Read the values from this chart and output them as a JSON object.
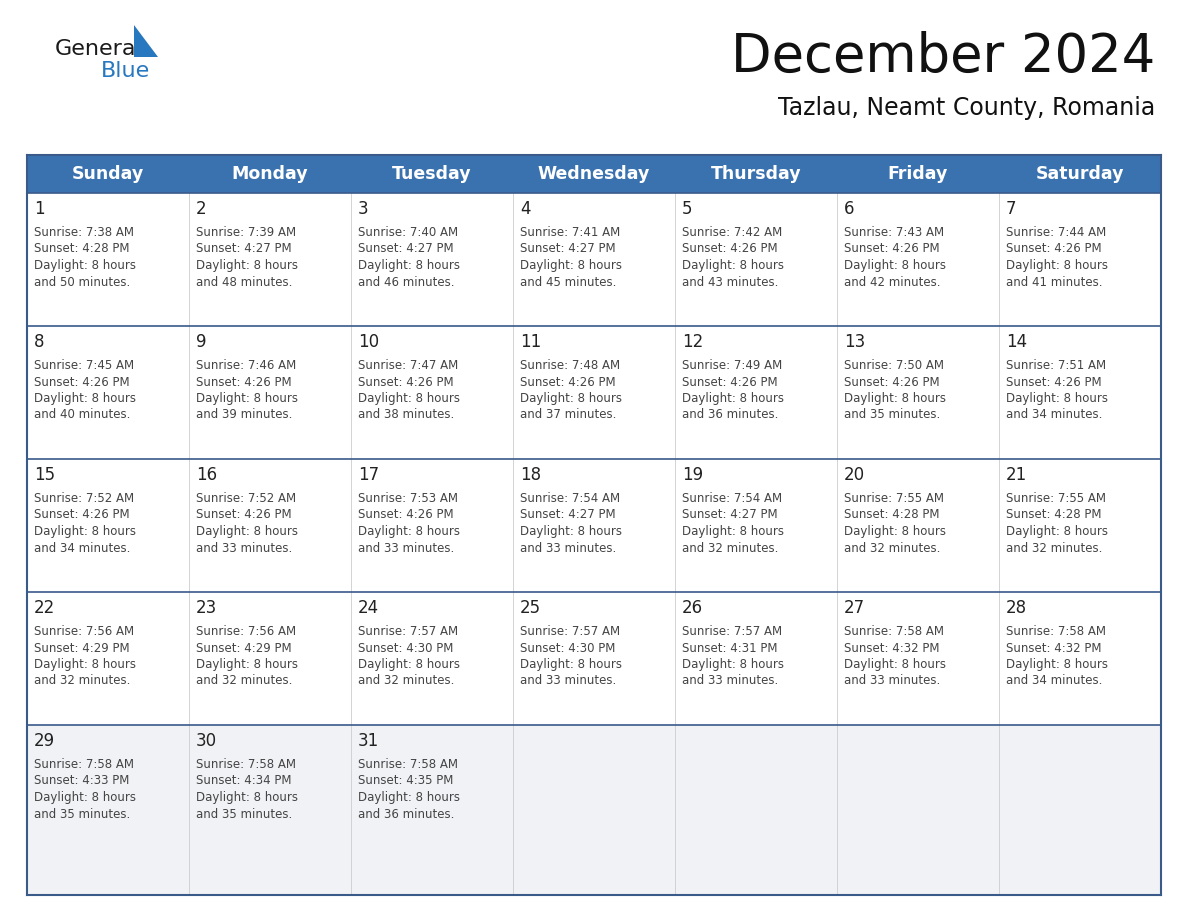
{
  "title": "December 2024",
  "subtitle": "Tazlau, Neamt County, Romania",
  "days_of_week": [
    "Sunday",
    "Monday",
    "Tuesday",
    "Wednesday",
    "Thursday",
    "Friday",
    "Saturday"
  ],
  "header_bg": "#3a72b0",
  "header_text": "#ffffff",
  "cell_bg": "#ffffff",
  "last_row_bg": "#f0f2f5",
  "row_divider_color": "#3a5a8a",
  "col_divider_color": "#cccccc",
  "outer_border_color": "#3a5a8a",
  "text_color": "#444444",
  "day_num_color": "#222222",
  "calendar_data": [
    [
      {
        "day": 1,
        "sunrise": "7:38 AM",
        "sunset": "4:28 PM",
        "daylight": "50 minutes."
      },
      {
        "day": 2,
        "sunrise": "7:39 AM",
        "sunset": "4:27 PM",
        "daylight": "48 minutes."
      },
      {
        "day": 3,
        "sunrise": "7:40 AM",
        "sunset": "4:27 PM",
        "daylight": "46 minutes."
      },
      {
        "day": 4,
        "sunrise": "7:41 AM",
        "sunset": "4:27 PM",
        "daylight": "45 minutes."
      },
      {
        "day": 5,
        "sunrise": "7:42 AM",
        "sunset": "4:26 PM",
        "daylight": "43 minutes."
      },
      {
        "day": 6,
        "sunrise": "7:43 AM",
        "sunset": "4:26 PM",
        "daylight": "42 minutes."
      },
      {
        "day": 7,
        "sunrise": "7:44 AM",
        "sunset": "4:26 PM",
        "daylight": "41 minutes."
      }
    ],
    [
      {
        "day": 8,
        "sunrise": "7:45 AM",
        "sunset": "4:26 PM",
        "daylight": "40 minutes."
      },
      {
        "day": 9,
        "sunrise": "7:46 AM",
        "sunset": "4:26 PM",
        "daylight": "39 minutes."
      },
      {
        "day": 10,
        "sunrise": "7:47 AM",
        "sunset": "4:26 PM",
        "daylight": "38 minutes."
      },
      {
        "day": 11,
        "sunrise": "7:48 AM",
        "sunset": "4:26 PM",
        "daylight": "37 minutes."
      },
      {
        "day": 12,
        "sunrise": "7:49 AM",
        "sunset": "4:26 PM",
        "daylight": "36 minutes."
      },
      {
        "day": 13,
        "sunrise": "7:50 AM",
        "sunset": "4:26 PM",
        "daylight": "35 minutes."
      },
      {
        "day": 14,
        "sunrise": "7:51 AM",
        "sunset": "4:26 PM",
        "daylight": "34 minutes."
      }
    ],
    [
      {
        "day": 15,
        "sunrise": "7:52 AM",
        "sunset": "4:26 PM",
        "daylight": "34 minutes."
      },
      {
        "day": 16,
        "sunrise": "7:52 AM",
        "sunset": "4:26 PM",
        "daylight": "33 minutes."
      },
      {
        "day": 17,
        "sunrise": "7:53 AM",
        "sunset": "4:26 PM",
        "daylight": "33 minutes."
      },
      {
        "day": 18,
        "sunrise": "7:54 AM",
        "sunset": "4:27 PM",
        "daylight": "33 minutes."
      },
      {
        "day": 19,
        "sunrise": "7:54 AM",
        "sunset": "4:27 PM",
        "daylight": "32 minutes."
      },
      {
        "day": 20,
        "sunrise": "7:55 AM",
        "sunset": "4:28 PM",
        "daylight": "32 minutes."
      },
      {
        "day": 21,
        "sunrise": "7:55 AM",
        "sunset": "4:28 PM",
        "daylight": "32 minutes."
      }
    ],
    [
      {
        "day": 22,
        "sunrise": "7:56 AM",
        "sunset": "4:29 PM",
        "daylight": "32 minutes."
      },
      {
        "day": 23,
        "sunrise": "7:56 AM",
        "sunset": "4:29 PM",
        "daylight": "32 minutes."
      },
      {
        "day": 24,
        "sunrise": "7:57 AM",
        "sunset": "4:30 PM",
        "daylight": "32 minutes."
      },
      {
        "day": 25,
        "sunrise": "7:57 AM",
        "sunset": "4:30 PM",
        "daylight": "33 minutes."
      },
      {
        "day": 26,
        "sunrise": "7:57 AM",
        "sunset": "4:31 PM",
        "daylight": "33 minutes."
      },
      {
        "day": 27,
        "sunrise": "7:58 AM",
        "sunset": "4:32 PM",
        "daylight": "33 minutes."
      },
      {
        "day": 28,
        "sunrise": "7:58 AM",
        "sunset": "4:32 PM",
        "daylight": "34 minutes."
      }
    ],
    [
      {
        "day": 29,
        "sunrise": "7:58 AM",
        "sunset": "4:33 PM",
        "daylight": "35 minutes."
      },
      {
        "day": 30,
        "sunrise": "7:58 AM",
        "sunset": "4:34 PM",
        "daylight": "35 minutes."
      },
      {
        "day": 31,
        "sunrise": "7:58 AM",
        "sunset": "4:35 PM",
        "daylight": "36 minutes."
      },
      null,
      null,
      null,
      null
    ]
  ],
  "logo_general_color": "#1a1a1a",
  "logo_blue_color": "#2878c0",
  "logo_triangle_color": "#2878c0"
}
